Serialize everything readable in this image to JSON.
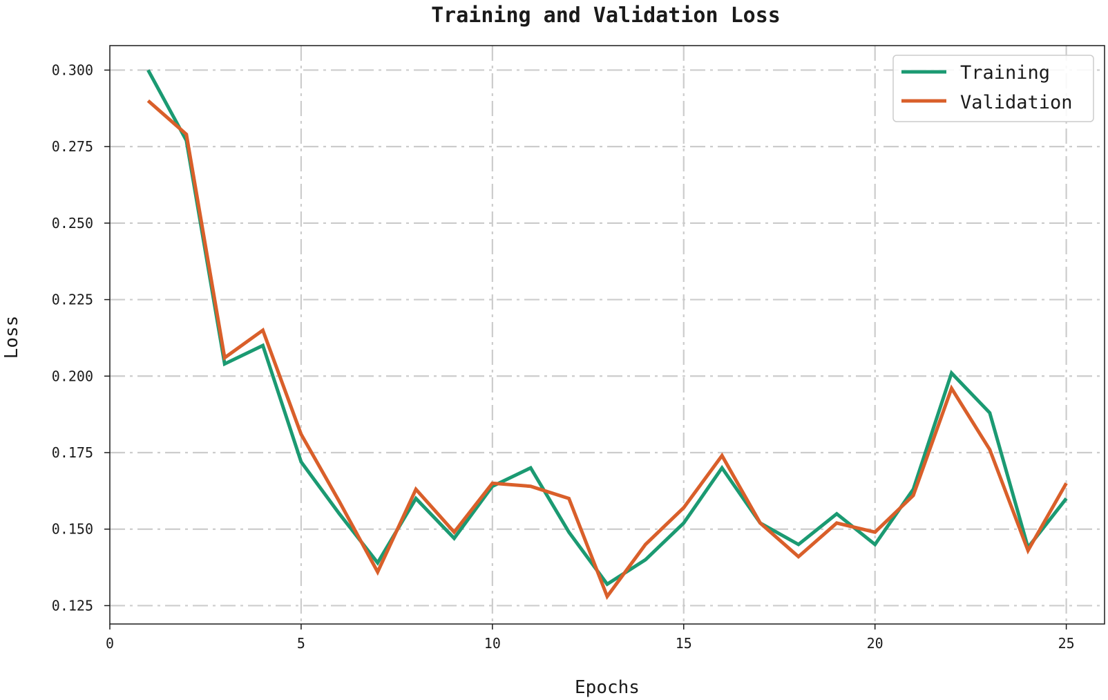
{
  "chart_data": {
    "type": "line",
    "title": "Training and Validation Loss",
    "xlabel": "Epochs",
    "ylabel": "Loss",
    "xlim": [
      0,
      26
    ],
    "ylim": [
      0.119,
      0.308
    ],
    "xticks": [
      0,
      5,
      10,
      15,
      20,
      25
    ],
    "yticks": [
      0.125,
      0.15,
      0.175,
      0.2,
      0.225,
      0.25,
      0.275,
      0.3
    ],
    "ytick_labels": [
      "0.125",
      "0.150",
      "0.175",
      "0.200",
      "0.225",
      "0.250",
      "0.275",
      "0.300"
    ],
    "grid": true,
    "legend_position": "top-right",
    "x": [
      1,
      2,
      3,
      4,
      5,
      6,
      7,
      8,
      9,
      10,
      11,
      12,
      13,
      14,
      15,
      16,
      17,
      18,
      19,
      20,
      21,
      22,
      23,
      24,
      25
    ],
    "series": [
      {
        "name": "Training",
        "color": "#1b9a72",
        "values": [
          0.3,
          0.277,
          0.204,
          0.21,
          0.172,
          0.155,
          0.139,
          0.16,
          0.147,
          0.164,
          0.17,
          0.149,
          0.132,
          0.14,
          0.152,
          0.17,
          0.152,
          0.145,
          0.155,
          0.145,
          0.163,
          0.201,
          0.188,
          0.144,
          0.16
        ]
      },
      {
        "name": "Validation",
        "color": "#d95f2a",
        "values": [
          0.29,
          0.279,
          0.206,
          0.215,
          0.181,
          0.159,
          0.136,
          0.163,
          0.149,
          0.165,
          0.164,
          0.16,
          0.128,
          0.145,
          0.157,
          0.174,
          0.152,
          0.141,
          0.152,
          0.149,
          0.161,
          0.196,
          0.176,
          0.143,
          0.165
        ]
      }
    ]
  }
}
